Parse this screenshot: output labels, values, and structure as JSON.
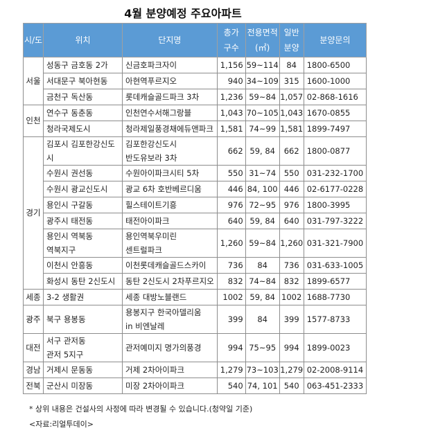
{
  "title": "4월 분양예정 주요아파트",
  "headers": [
    "시/도",
    "위치",
    "단지명",
    "총가\n구수",
    "전용면적\n(㎡)",
    "일반\n분양",
    "분양문의"
  ],
  "groups": [
    {
      "region": "서울",
      "rows": [
        {
          "location": "성동구 금호동 2가",
          "complex": "신금호파크자이",
          "households": "1,156",
          "area": "59~114",
          "general": "84",
          "contact": "1800-6500"
        },
        {
          "location": "서대문구 북아현동",
          "complex": "아현역푸르지오",
          "households": "940",
          "area": "34~109",
          "general": "315",
          "contact": "1600-1000"
        },
        {
          "location": "금천구 독산동",
          "complex": "롯데캐슬골드파크 3차",
          "households": "1,236",
          "area": "59~84",
          "general": "1,057",
          "contact": "02-868-1616"
        }
      ]
    },
    {
      "region": "인천",
      "rows": [
        {
          "location": "연수구 동춘동",
          "complex": "인천연수서해그랑블",
          "households": "1,043",
          "area": "70~105",
          "general": "1,043",
          "contact": "1670-0855"
        },
        {
          "location": "청라국제도시",
          "complex": "청라제일풍경채에듀앤파크",
          "households": "1,581",
          "area": "74~99",
          "general": "1,581",
          "contact": "1899-7497"
        }
      ]
    },
    {
      "region": "경기",
      "rows": [
        {
          "location": "김포시 김포한강신도시",
          "complex": "김포한강신도시\n반도유보라 3차",
          "households": "662",
          "area": "59, 84",
          "general": "662",
          "contact": "1800-0877"
        },
        {
          "location": "수원시 권선동",
          "complex": "수원아이파크시티 5차",
          "households": "550",
          "area": "31~74",
          "general": "550",
          "contact": "031-232-1700"
        },
        {
          "location": "수원시 광교신도시",
          "complex": "광교 6차 호반베르디움",
          "households": "446",
          "area": "84, 100",
          "general": "446",
          "contact": "02-6177-0228"
        },
        {
          "location": "용인시 구갈동",
          "complex": "힐스테이트기흥",
          "households": "976",
          "area": "72~95",
          "general": "976",
          "contact": "1800-3995"
        },
        {
          "location": "광주시 태전동",
          "complex": "태전아이파크",
          "households": "640",
          "area": "59, 84",
          "general": "640",
          "contact": "031-797-3222"
        },
        {
          "location": "용인시 역북동\n역북지구",
          "complex": "용인역북우미린\n센트럴파크",
          "households": "1,260",
          "area": "59~84",
          "general": "1,260",
          "contact": "031-321-7900"
        },
        {
          "location": "이천시 안흥동",
          "complex": "이천롯데캐슬골드스카이",
          "households": "736",
          "area": "84",
          "general": "736",
          "contact": "031-633-1005"
        },
        {
          "location": "화성시 동탄 2신도시",
          "complex": "동탄 2신도시 2차푸르지오",
          "households": "832",
          "area": "74~84",
          "general": "832",
          "contact": "1899-6577"
        }
      ]
    },
    {
      "region": "세종",
      "rows": [
        {
          "location": "3-2 생활권",
          "complex": "세종 대방노블랜드",
          "households": "1002",
          "area": "59, 84",
          "general": "1002",
          "contact": "1688-7730"
        }
      ]
    },
    {
      "region": "광주",
      "rows": [
        {
          "location": "북구 용봉동",
          "complex": "용봉지구 한국아델리움\nin 비엔날레",
          "households": "399",
          "area": "84",
          "general": "399",
          "contact": "1577-8733"
        }
      ]
    },
    {
      "region": "대전",
      "rows": [
        {
          "location": "서구 관저동\n관저 5지구",
          "complex": "관저예미지 명가의풍경",
          "households": "994",
          "area": "75~95",
          "general": "994",
          "contact": "1899-0023"
        }
      ]
    },
    {
      "region": "경남",
      "rows": [
        {
          "location": "거제시 문동동",
          "complex": "거제 2차아이파크",
          "households": "1,279",
          "area": "73~103",
          "general": "1,279",
          "contact": "02-2008-9114"
        }
      ]
    },
    {
      "region": "전북",
      "rows": [
        {
          "location": "군산시 미장동",
          "complex": "미장 2차아이파크",
          "households": "540",
          "area": "74, 101",
          "general": "540",
          "contact": "063-451-2333"
        }
      ]
    }
  ],
  "footnote": "* 상위 내용은 건설사의 사정에 따라 변경될 수 있습니다.(청약일 기준)",
  "source": "<자료:리얼투데이>",
  "colors": {
    "header_bg": "#5b9bd5",
    "header_text": "#ffffff"
  }
}
